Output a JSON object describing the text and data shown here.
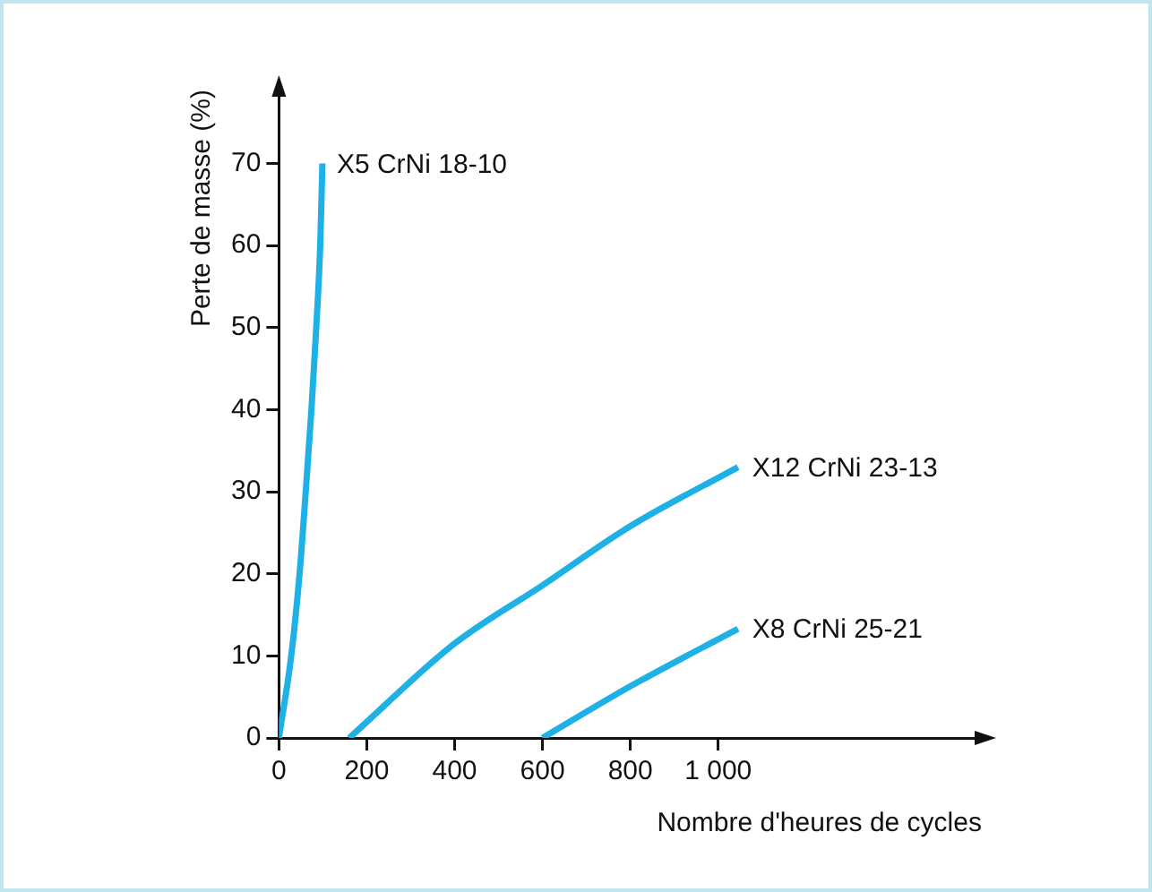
{
  "chart_data": {
    "type": "line",
    "xlabel": "Nombre d'heures de cycles",
    "ylabel": "Perte de masse (%)",
    "xlim": [
      0,
      1600
    ],
    "xticks": [
      0,
      200,
      400,
      600,
      800,
      {
        "value": 1000,
        "label": "1 000"
      }
    ],
    "ylim": [
      0,
      79
    ],
    "yticks": [
      0,
      10,
      20,
      30,
      40,
      50,
      60,
      70
    ],
    "grid": false,
    "legend": false,
    "marker": "none",
    "line_style": "solid",
    "series": [
      {
        "name": "X5 CrNi 18-10",
        "color": "#1fb1e6",
        "x": [
          0,
          28,
          47,
          61,
          74,
          85,
          94,
          99
        ],
        "values": [
          0,
          10,
          20,
          30,
          40,
          50,
          60,
          70
        ]
      },
      {
        "name": "X12 CrNi 23-13",
        "color": "#1fb1e6",
        "x": [
          160,
          400,
          600,
          800,
          1045
        ],
        "values": [
          0,
          11.5,
          18.6,
          25.8,
          33
        ]
      },
      {
        "name": "X8 CrNi 25-21",
        "color": "#1fb1e6",
        "x": [
          600,
          800,
          1045
        ],
        "values": [
          0,
          6.3,
          13.3
        ]
      }
    ]
  }
}
